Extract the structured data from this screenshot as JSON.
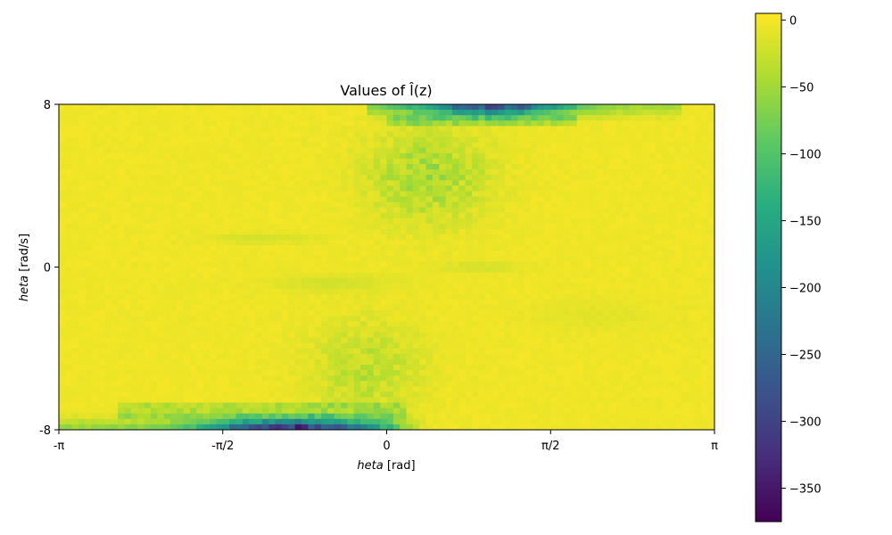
{
  "chart_data": {
    "type": "heatmap",
    "title": "Values of $\\hat{l}(z)$",
    "xlabel": "$\\theta$ [rad]",
    "ylabel": "$\\theta$ [rad/s]",
    "x_range": [
      -3.14159,
      3.14159
    ],
    "y_range": [
      -8,
      8
    ],
    "x_ticks": [
      {
        "value": -3.14159,
        "label": "-π"
      },
      {
        "value": -1.5708,
        "label": "-π/2"
      },
      {
        "value": 0,
        "label": "0"
      },
      {
        "value": 1.5708,
        "label": "π/2"
      },
      {
        "value": 3.14159,
        "label": "π"
      }
    ],
    "y_ticks": [
      {
        "value": 8,
        "label": "8"
      },
      {
        "value": 0,
        "label": "0"
      },
      {
        "value": -8,
        "label": "-8"
      }
    ],
    "colorbar": {
      "colormap": "viridis",
      "range": [
        -375,
        5
      ],
      "ticks": [
        {
          "value": 0,
          "label": "0"
        },
        {
          "value": -50,
          "label": "−50"
        },
        {
          "value": -100,
          "label": "−100"
        },
        {
          "value": -150,
          "label": "−150"
        },
        {
          "value": -200,
          "label": "−200"
        },
        {
          "value": -250,
          "label": "−250"
        },
        {
          "value": -300,
          "label": "−300"
        },
        {
          "value": -350,
          "label": "−350"
        }
      ]
    },
    "grid": false,
    "dominant_value": 0,
    "regions": [
      {
        "description": "bottom band near theta_dot=-8, theta in [-pi,0.3]",
        "min_value": -375
      },
      {
        "description": "top band near theta_dot=8, theta in [0,2.5]",
        "min_value": -330
      },
      {
        "description": "upper middle around theta in [0,1.2], theta_dot in [3,7]",
        "min_value": -50
      }
    ]
  }
}
